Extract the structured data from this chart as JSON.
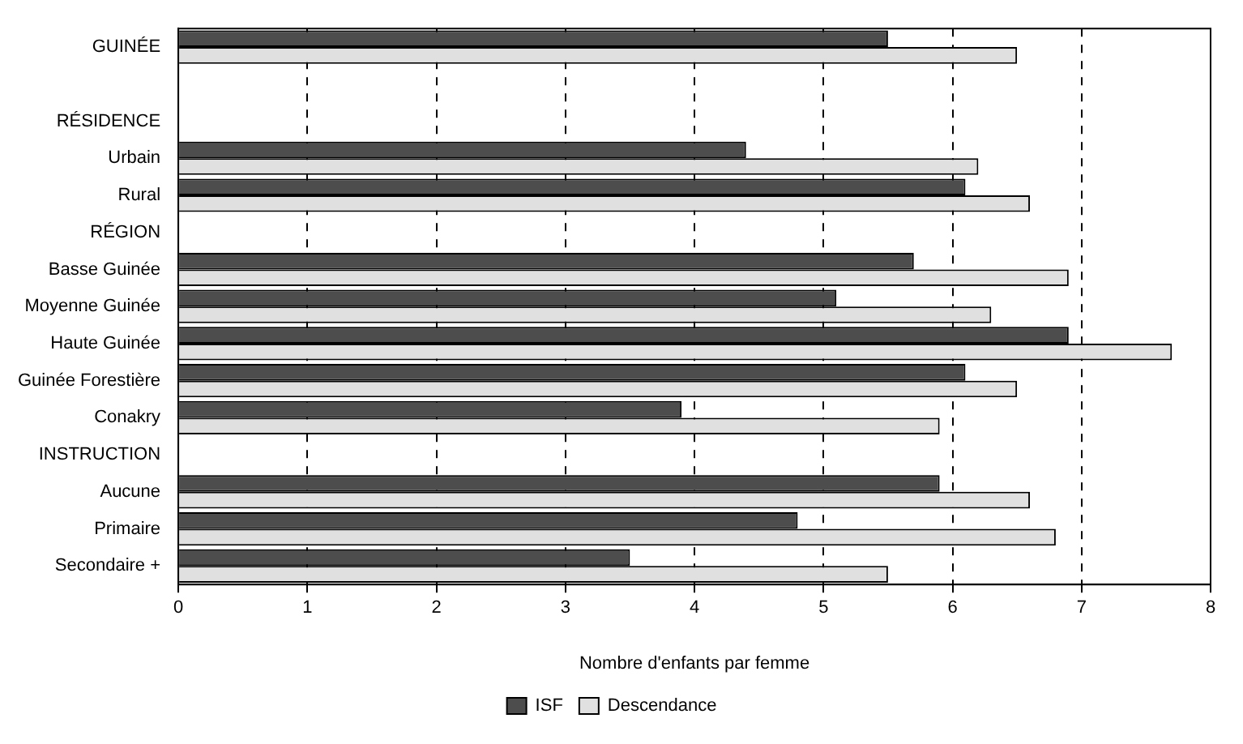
{
  "chart_data": {
    "type": "bar",
    "orientation": "horizontal",
    "xlabel": "Nombre d'enfants par femme",
    "categories": [
      "GUINÉE",
      null,
      "RÉSIDENCE",
      "Urbain",
      "Rural",
      "RÉGION",
      "Basse Guinée",
      "Moyenne Guinée",
      "Haute Guinée",
      "Guinée Forestière",
      "Conakry",
      "INSTRUCTION",
      "Aucune",
      "Primaire",
      "Secondaire +"
    ],
    "series": [
      {
        "name": "ISF",
        "color": "#4d4d4d",
        "values": [
          5.5,
          null,
          null,
          4.4,
          6.1,
          null,
          5.7,
          5.1,
          6.9,
          6.1,
          3.9,
          null,
          5.9,
          4.8,
          3.5
        ]
      },
      {
        "name": "Descendance",
        "color": "#e0e0e0",
        "values": [
          6.5,
          null,
          null,
          6.2,
          6.6,
          null,
          6.9,
          6.3,
          7.7,
          6.5,
          5.9,
          null,
          6.6,
          6.8,
          5.5
        ]
      }
    ],
    "xlim": [
      0,
      8
    ],
    "xticks": [
      0,
      1,
      2,
      3,
      4,
      5,
      6,
      7,
      8
    ],
    "grid": "x",
    "legend": "bottom"
  }
}
